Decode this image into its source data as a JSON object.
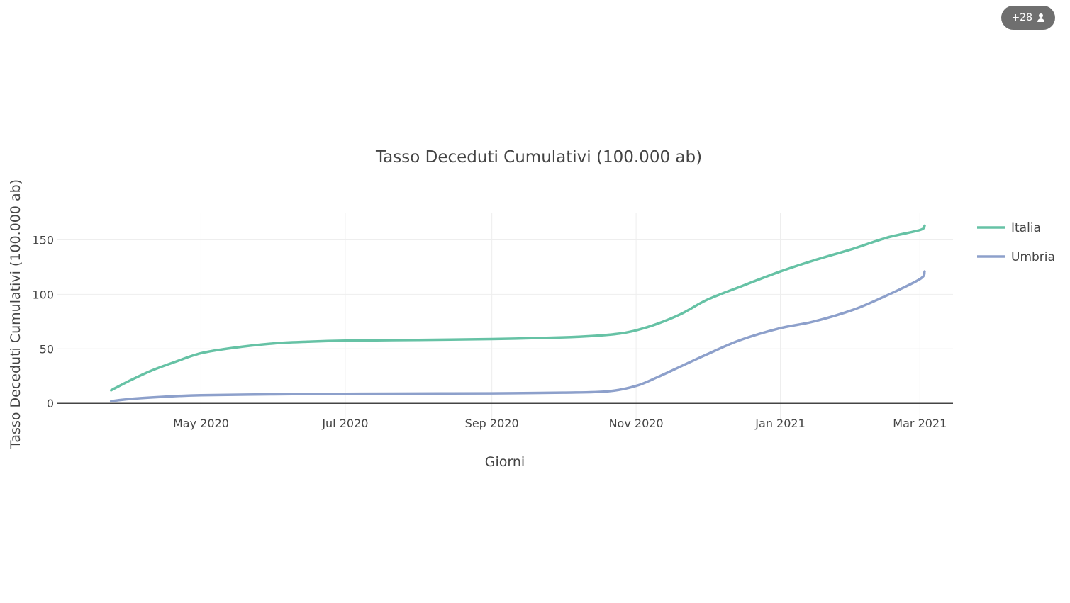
{
  "badge": {
    "count": "+28",
    "icon": "person-icon"
  },
  "chart_data": {
    "type": "line",
    "title": "Tasso Deceduti Cumulativi (100.000 ab)",
    "xlabel": "Giorni",
    "ylabel": "Tasso Deceduti Cumulativi (100.000 ab)",
    "xlim": [
      "2020-03-01",
      "2021-03-15"
    ],
    "ylim": [
      -20,
      175
    ],
    "xticks": [
      {
        "date": "2020-05-01",
        "label": "May 2020"
      },
      {
        "date": "2020-07-01",
        "label": "Jul 2020"
      },
      {
        "date": "2020-09-01",
        "label": "Sep 2020"
      },
      {
        "date": "2020-11-01",
        "label": "Nov 2020"
      },
      {
        "date": "2021-01-01",
        "label": "Jan 2021"
      },
      {
        "date": "2021-03-01",
        "label": "Mar 2021"
      }
    ],
    "yticks": [
      0,
      50,
      100,
      150
    ],
    "grid": true,
    "legend_position": "right",
    "series": [
      {
        "name": "Italia",
        "color": "#66c2a5",
        "points": [
          [
            "2020-03-24",
            12
          ],
          [
            "2020-04-01",
            21
          ],
          [
            "2020-04-10",
            30
          ],
          [
            "2020-04-20",
            38
          ],
          [
            "2020-05-01",
            46
          ],
          [
            "2020-05-15",
            51
          ],
          [
            "2020-06-01",
            55
          ],
          [
            "2020-06-15",
            56.5
          ],
          [
            "2020-07-01",
            57.5
          ],
          [
            "2020-08-01",
            58.2
          ],
          [
            "2020-09-01",
            59
          ],
          [
            "2020-10-01",
            60.5
          ],
          [
            "2020-10-15",
            62
          ],
          [
            "2020-10-25",
            64
          ],
          [
            "2020-11-01",
            67
          ],
          [
            "2020-11-10",
            73
          ],
          [
            "2020-11-20",
            82
          ],
          [
            "2020-12-01",
            95
          ],
          [
            "2020-12-15",
            107
          ],
          [
            "2021-01-01",
            121
          ],
          [
            "2021-01-15",
            131
          ],
          [
            "2021-02-01",
            142
          ],
          [
            "2021-02-15",
            152
          ],
          [
            "2021-03-01",
            159
          ],
          [
            "2021-03-03",
            163
          ]
        ]
      },
      {
        "name": "Umbria",
        "color": "#8da0cb",
        "points": [
          [
            "2020-03-24",
            2
          ],
          [
            "2020-04-01",
            4
          ],
          [
            "2020-04-15",
            6
          ],
          [
            "2020-05-01",
            7.5
          ],
          [
            "2020-06-01",
            8.3
          ],
          [
            "2020-07-01",
            8.8
          ],
          [
            "2020-08-01",
            9
          ],
          [
            "2020-09-01",
            9.2
          ],
          [
            "2020-10-01",
            9.8
          ],
          [
            "2020-10-20",
            11
          ],
          [
            "2020-11-01",
            16
          ],
          [
            "2020-11-10",
            24
          ],
          [
            "2020-11-20",
            34
          ],
          [
            "2020-12-01",
            45
          ],
          [
            "2020-12-15",
            58
          ],
          [
            "2021-01-01",
            69
          ],
          [
            "2021-01-15",
            75
          ],
          [
            "2021-02-01",
            86
          ],
          [
            "2021-02-15",
            99
          ],
          [
            "2021-03-01",
            114
          ],
          [
            "2021-03-03",
            121
          ]
        ]
      }
    ]
  }
}
